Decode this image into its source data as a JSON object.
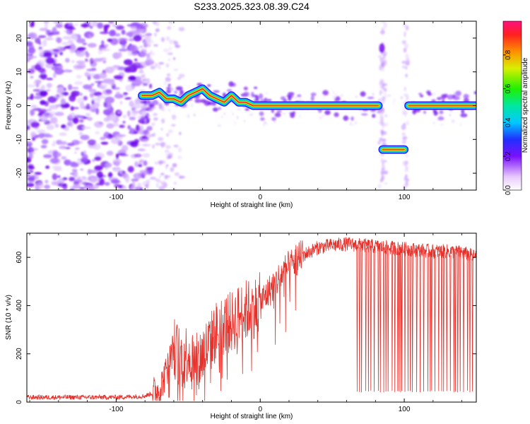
{
  "title": "S233.2025.323.08.39.C24",
  "chart_data": [
    {
      "type": "heatmap",
      "name": "spectrogram",
      "xlabel": "Height of straight line (km)",
      "ylabel": "Frequency (Hz)",
      "xlim": [
        -162,
        150
      ],
      "ylim": [
        -25,
        25
      ],
      "xticks": [
        -100,
        0,
        100
      ],
      "yticks": [
        -20,
        -10,
        0,
        10,
        20
      ],
      "colorbar": {
        "label": "Normalized spectral amplitude",
        "range": [
          0,
          1
        ],
        "ticks": [
          0.0,
          0.2,
          0.4,
          0.6,
          0.8
        ]
      },
      "dominant_frequency_track": {
        "x": [
          -82,
          -75,
          -70,
          -65,
          -60,
          -55,
          -50,
          -45,
          -40,
          -35,
          -30,
          -25,
          -20,
          -15,
          -10,
          -5,
          0,
          10,
          30,
          50,
          70,
          82,
          85,
          90,
          95,
          100,
          103,
          110,
          130,
          150
        ],
        "y": [
          3,
          3,
          4,
          2,
          2,
          1,
          3,
          4,
          5,
          3,
          2,
          1,
          3,
          1,
          1,
          0,
          0,
          0,
          0,
          0,
          0,
          0,
          -13,
          -13,
          -13,
          -13,
          0,
          0,
          0,
          0
        ]
      }
    },
    {
      "type": "line",
      "name": "snr",
      "xlabel": "Height of straight line (km)",
      "ylabel": "SNR (10 * v/v)",
      "xlim": [
        -162,
        150
      ],
      "ylim": [
        0,
        700
      ],
      "xticks": [
        -100,
        0,
        100
      ],
      "yticks": [
        0,
        200,
        400,
        600
      ],
      "color": "#e8302a",
      "envelope": {
        "x": [
          -162,
          -100,
          -80,
          -70,
          -65,
          -60,
          -55,
          -50,
          -45,
          -40,
          -35,
          -30,
          -25,
          -20,
          -15,
          -10,
          -5,
          0,
          5,
          10,
          15,
          20,
          25,
          30,
          35,
          40,
          50,
          60,
          70,
          80,
          90,
          100,
          110,
          120,
          130,
          140,
          150
        ],
        "y": [
          20,
          20,
          25,
          50,
          130,
          230,
          180,
          210,
          150,
          200,
          240,
          300,
          320,
          330,
          360,
          380,
          390,
          410,
          450,
          490,
          530,
          560,
          590,
          610,
          625,
          640,
          650,
          655,
          650,
          645,
          640,
          635,
          630,
          625,
          625,
          620,
          600
        ]
      },
      "dropouts": {
        "x_range": [
          67,
          150
        ],
        "low_value": 40
      }
    }
  ]
}
